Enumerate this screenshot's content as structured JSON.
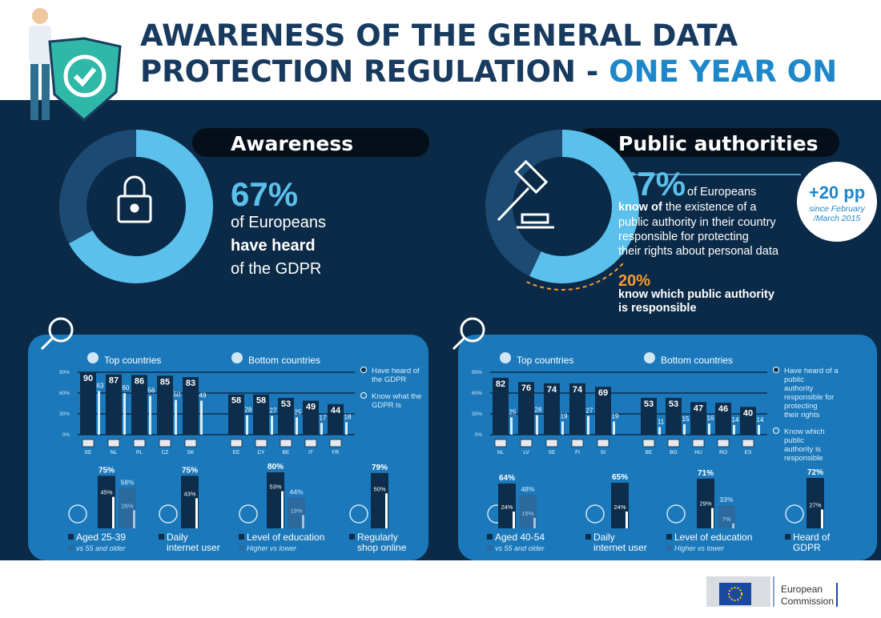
{
  "header": {
    "title_line1": "AWARENESS OF THE GENERAL DATA",
    "title_line2": "PROTECTION REGULATION -",
    "title_highlight": "ONE YEAR ON"
  },
  "awareness": {
    "heading": "Awareness",
    "line1": "of Europeans",
    "line2": "have heard",
    "line3": "of the GDPR"
  },
  "public_authorities": {
    "heading": "Public authorities",
    "line1": "of Europeans",
    "line2_bold": "know of",
    "line2_rest": "the existence of a",
    "line3": "public authority in their country",
    "line4": "responsible for protecting",
    "line5": "their rights about personal data",
    "change": "+20 pp",
    "change_note1": "since February",
    "change_note2": "/March 2015",
    "line6": "know which public authority",
    "line7": "is responsible"
  },
  "footer": {
    "org1": "European",
    "org2": "Commission"
  },
  "chart_data": [
    {
      "type": "donut",
      "values": [
        67
      ],
      "value_labels": [
        "67%"
      ],
      "colors": [
        "#5bc0eb"
      ]
    },
    {
      "type": "donut",
      "values": [
        57,
        20
      ],
      "value_labels": [
        "57%",
        "20%"
      ],
      "colors": [
        "#5bc0eb",
        "#f29c38"
      ]
    },
    {
      "type": "bar",
      "groups": [
        "Top countries",
        "Bottom countries"
      ],
      "categories": [
        "SE",
        "NL",
        "PL",
        "CZ",
        "SK",
        "EE",
        "CY",
        "BE",
        "IT",
        "FR"
      ],
      "series": [
        {
          "name": "Have heard of the GDPR",
          "color": "#0d2d4a",
          "values": [
            90,
            87,
            86,
            85,
            83,
            58,
            58,
            53,
            49,
            44
          ]
        },
        {
          "name": "Know what the GDPR is",
          "color": "#d8eefb",
          "values": [
            63,
            60,
            56,
            50,
            49,
            28,
            27,
            25,
            17,
            18
          ]
        }
      ],
      "ylim": [
        0,
        90
      ],
      "yticks": [
        {
          "value": 0,
          "label": "0%"
        },
        {
          "value": 30,
          "label": "30%"
        },
        {
          "value": 60,
          "label": "60%"
        },
        {
          "value": 90,
          "label": "90%"
        }
      ]
    },
    {
      "type": "bar",
      "groups": [
        "Top countries",
        "Bottom countries"
      ],
      "categories": [
        "NL",
        "LV",
        "SE",
        "FI",
        "SI",
        "BE",
        "BG",
        "HU",
        "RO",
        "ES"
      ],
      "series": [
        {
          "name": "Have heard of a public authority responsible for protecting their rights",
          "color": "#0d2d4a",
          "values": [
            82,
            76,
            74,
            74,
            69,
            53,
            53,
            47,
            46,
            40
          ]
        },
        {
          "name": "Know which public authority is responsible",
          "color": "#d8eefb",
          "values": [
            25,
            28,
            19,
            27,
            19,
            11,
            15,
            16,
            14,
            14
          ]
        }
      ],
      "ylim": [
        0,
        90
      ],
      "yticks": [
        {
          "value": 0,
          "label": "0%"
        },
        {
          "value": 30,
          "label": "30%"
        },
        {
          "value": 60,
          "label": "60%"
        },
        {
          "value": 90,
          "label": "90%"
        }
      ]
    },
    {
      "type": "paired",
      "groups": [
        {
          "label": [
            "Aged 25-39"
          ],
          "note": "vs 55 and older",
          "bars": [
            {
              "values": [
                75,
                45
              ],
              "value_labels": [
                "75%",
                "45%"
              ]
            },
            {
              "values": [
                58,
                26
              ],
              "value_labels": [
                "58%",
                "26%"
              ]
            }
          ]
        },
        {
          "label": [
            "Daily",
            "internet user"
          ],
          "bars": [
            {
              "values": [
                75,
                43
              ],
              "value_labels": [
                "75%",
                "43%"
              ]
            }
          ]
        },
        {
          "label": [
            "Level of education"
          ],
          "note": "Higher vs lower",
          "bars": [
            {
              "values": [
                80,
                53
              ],
              "value_labels": [
                "80%",
                "53%"
              ]
            },
            {
              "values": [
                44,
                19
              ],
              "value_labels": [
                "44%",
                "19%"
              ]
            }
          ]
        },
        {
          "label": [
            "Regularly",
            "shop online"
          ],
          "bars": [
            {
              "values": [
                79,
                50
              ],
              "value_labels": [
                "79%",
                "50%"
              ]
            }
          ]
        }
      ]
    },
    {
      "type": "paired",
      "groups": [
        {
          "label": [
            "Aged 40-54"
          ],
          "note": "vs 55 and older",
          "bars": [
            {
              "values": [
                64,
                24
              ],
              "value_labels": [
                "64%",
                "24%"
              ]
            },
            {
              "values": [
                48,
                15
              ],
              "value_labels": [
                "48%",
                "15%"
              ]
            }
          ]
        },
        {
          "label": [
            "Daily",
            "internet user"
          ],
          "bars": [
            {
              "values": [
                65,
                24
              ],
              "value_labels": [
                "65%",
                "24%"
              ]
            }
          ]
        },
        {
          "label": [
            "Level of education"
          ],
          "note": "Higher vs lower",
          "bars": [
            {
              "values": [
                71,
                29
              ],
              "value_labels": [
                "71%",
                "29%"
              ]
            },
            {
              "values": [
                33,
                7
              ],
              "value_labels": [
                "33%",
                "7%"
              ]
            }
          ]
        },
        {
          "label": [
            "Heard of",
            "GDPR"
          ],
          "bars": [
            {
              "values": [
                72,
                27
              ],
              "value_labels": [
                "72%",
                "27%"
              ]
            }
          ]
        }
      ]
    }
  ]
}
